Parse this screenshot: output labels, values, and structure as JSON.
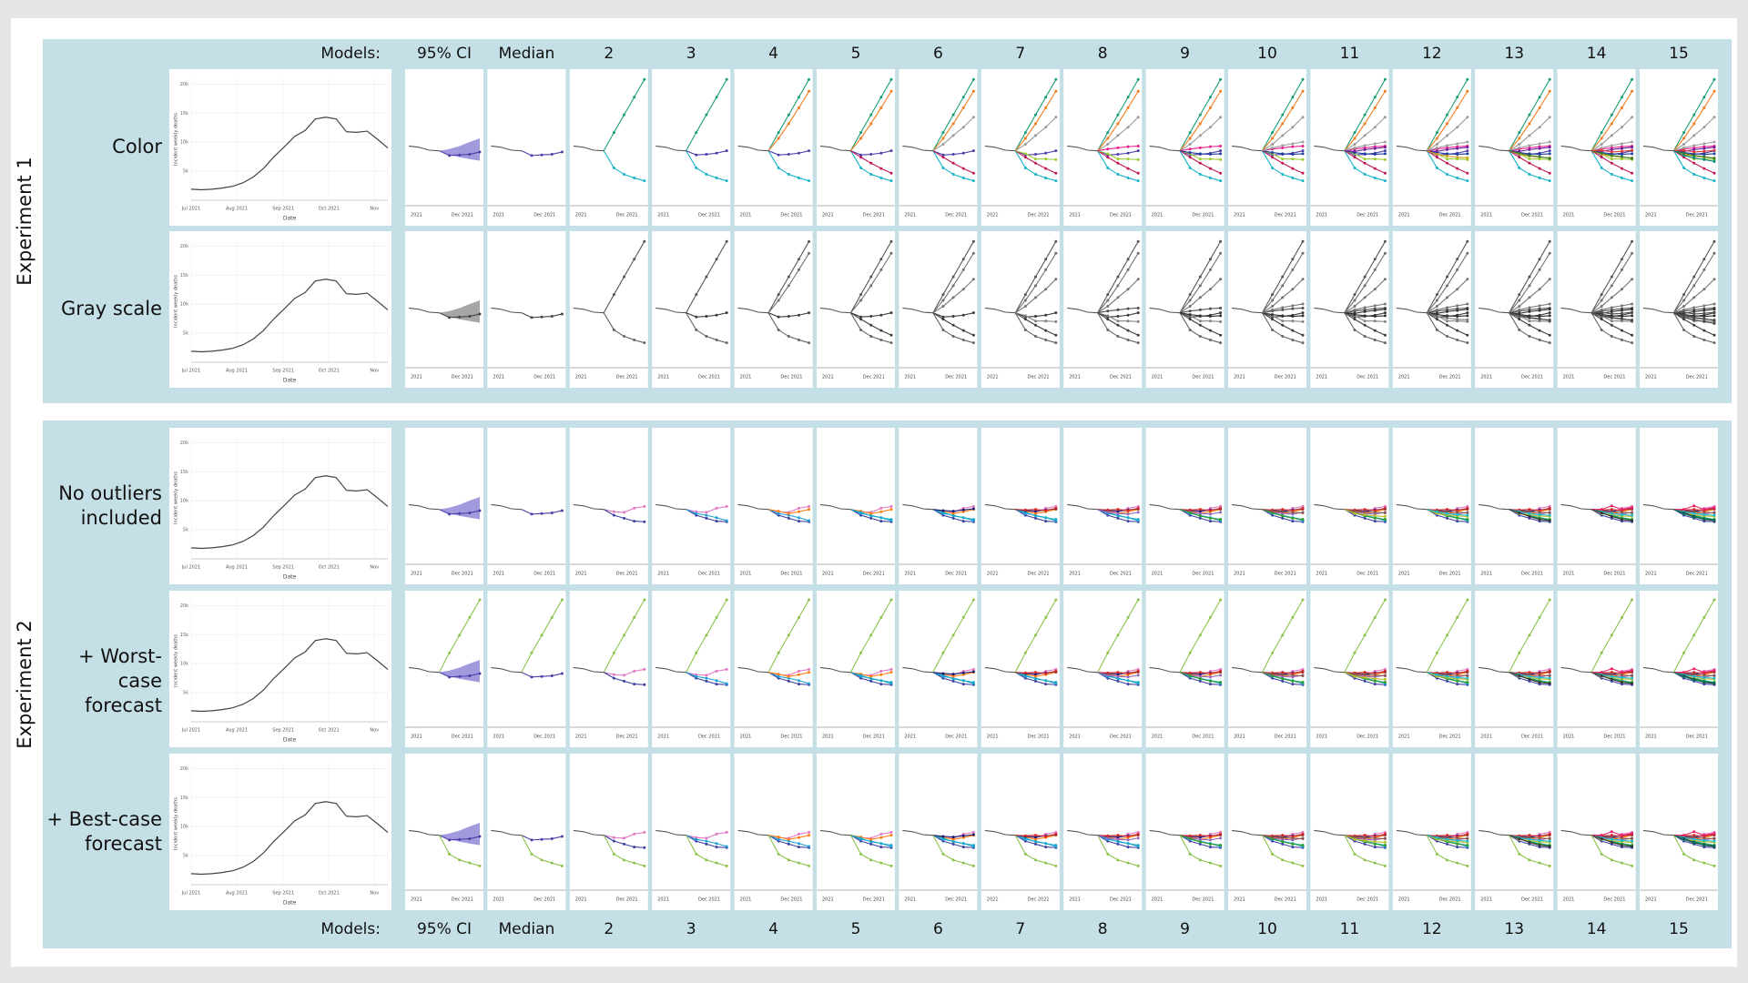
{
  "column_header_label": "Models:",
  "columns": [
    "95% CI",
    "Median",
    "2",
    "3",
    "4",
    "5",
    "6",
    "7",
    "8",
    "9",
    "10",
    "11",
    "12",
    "13",
    "14",
    "15"
  ],
  "experiments": [
    {
      "label": "Experiment 1",
      "rows": [
        {
          "label": "Color",
          "style": "color",
          "model_set": "models_exp1"
        },
        {
          "label": "Gray scale",
          "style": "gray",
          "model_set": "models_exp1"
        }
      ]
    },
    {
      "label": "Experiment 2",
      "rows": [
        {
          "label": "No outliers included",
          "style": "color",
          "model_set": "models_exp2"
        },
        {
          "label": "+ Worst-case forecast",
          "style": "color",
          "model_set": "models_exp2",
          "extra": "worst_case"
        },
        {
          "label": "+ Best-case forecast",
          "style": "color",
          "model_set": "models_exp2",
          "extra": "best_case"
        }
      ]
    }
  ],
  "history_chart": {
    "y_label": "Incident weekly deaths",
    "x_label": "Date",
    "ylim": [
      0,
      21000
    ],
    "yticks": [
      {
        "value": 5000,
        "label": "5k"
      },
      {
        "value": 10000,
        "label": "10k"
      },
      {
        "value": 15000,
        "label": "15k"
      },
      {
        "value": 20000,
        "label": "20k"
      }
    ],
    "xlim": [
      0,
      19
    ],
    "xticks": [
      {
        "value": 0,
        "label": "Jul 2021"
      },
      {
        "value": 4.4,
        "label": "Aug 2021"
      },
      {
        "value": 8.9,
        "label": "Sep 2021"
      },
      {
        "value": 13.3,
        "label": "Oct 2021"
      },
      {
        "value": 17.7,
        "label": "Nov"
      }
    ],
    "color": "#444444",
    "values": [
      1900,
      1800,
      1900,
      2100,
      2400,
      3000,
      4000,
      5500,
      7500,
      9200,
      11000,
      12000,
      14000,
      14300,
      14000,
      11800,
      11700,
      11900,
      10500,
      9000
    ]
  },
  "forecast_chart": {
    "x_labels": [
      "2021",
      "Dec 2021"
    ],
    "ylim": [
      0,
      21000
    ],
    "history_tail": [
      9500,
      9300,
      8800,
      8700
    ],
    "ci_lower": [
      8000,
      7600,
      7300,
      7000
    ],
    "ci_upper": [
      9000,
      9500,
      10200,
      10800
    ],
    "ci_color": "#6f66cc",
    "median": [
      7900,
      8000,
      8100,
      8500
    ],
    "median_color": "#4b3ea8",
    "worst_case": {
      "color": "#8bc34a",
      "values": [
        12000,
        15000,
        18000,
        21000
      ]
    },
    "best_case": {
      "color": "#8bc34a",
      "values": [
        5500,
        4500,
        4000,
        3500
      ]
    },
    "models_exp1": [
      {
        "color": "#1a9e77",
        "values": [
          11800,
          14800,
          17800,
          20800
        ]
      },
      {
        "color": "#17b3c9",
        "values": [
          5800,
          4700,
          4100,
          3600
        ]
      },
      {
        "color": "#4b3ea8",
        "values": [
          8000,
          8100,
          8300,
          8700
        ]
      },
      {
        "color": "#f07b1a",
        "values": [
          10800,
          13300,
          16000,
          18800
        ]
      },
      {
        "color": "#c2185b",
        "values": [
          7600,
          6600,
          5700,
          4900
        ]
      },
      {
        "color": "#9a9a9a",
        "values": [
          9800,
          11300,
          12700,
          14400
        ]
      },
      {
        "color": "#9acd32",
        "values": [
          8200,
          7300,
          7300,
          7200
        ]
      },
      {
        "color": "#e91e8c",
        "values": [
          9000,
          9200,
          9400,
          9500
        ]
      },
      {
        "color": "#1f3f9f",
        "values": [
          8400,
          8200,
          8100,
          8200
        ]
      },
      {
        "color": "#a0a0a0",
        "values": [
          9200,
          9600,
          9900,
          10200
        ]
      },
      {
        "color": "#6a1b9a",
        "values": [
          8600,
          8900,
          9100,
          9300
        ]
      },
      {
        "color": "#d4a017",
        "values": [
          8100,
          7800,
          7600,
          7500
        ]
      },
      {
        "color": "#2e7d32",
        "values": [
          8300,
          7900,
          7700,
          7400
        ]
      },
      {
        "color": "#e53935",
        "values": [
          8800,
          8500,
          8600,
          8800
        ]
      },
      {
        "color": "#00897b",
        "values": [
          7900,
          7500,
          7200,
          6900
        ]
      }
    ],
    "models_exp2": [
      {
        "color": "#e377c2",
        "values": [
          8300,
          8200,
          8900,
          9200
        ]
      },
      {
        "color": "#3b3fa0",
        "values": [
          7700,
          7200,
          6700,
          6600
        ]
      },
      {
        "color": "#1f9fd8",
        "values": [
          8000,
          7700,
          7300,
          6800
        ]
      },
      {
        "color": "#ff7f0e",
        "values": [
          8400,
          8000,
          8300,
          8700
        ]
      },
      {
        "color": "#17a9c9",
        "values": [
          8200,
          7600,
          7300,
          7000
        ]
      },
      {
        "color": "#1a1a6e",
        "values": [
          8500,
          8400,
          8600,
          8800
        ]
      },
      {
        "color": "#d62728",
        "values": [
          8600,
          8700,
          8500,
          8900
        ]
      },
      {
        "color": "#9467bd",
        "values": [
          8200,
          8000,
          7900,
          8200
        ]
      },
      {
        "color": "#2ca02c",
        "values": [
          8100,
          7600,
          7200,
          7000
        ]
      },
      {
        "color": "#8c564b",
        "values": [
          8400,
          8300,
          8200,
          8100
        ]
      },
      {
        "color": "#bcbd22",
        "values": [
          8000,
          7800,
          7600,
          7500
        ]
      },
      {
        "color": "#17becf",
        "values": [
          8300,
          8000,
          7800,
          7700
        ]
      },
      {
        "color": "#333333",
        "values": [
          8100,
          7500,
          7000,
          6800
        ]
      },
      {
        "color": "#e91e63",
        "values": [
          8700,
          9300,
          8700,
          9000
        ]
      },
      {
        "color": "#006d5b",
        "values": [
          8000,
          7400,
          7100,
          6900
        ]
      }
    ]
  }
}
